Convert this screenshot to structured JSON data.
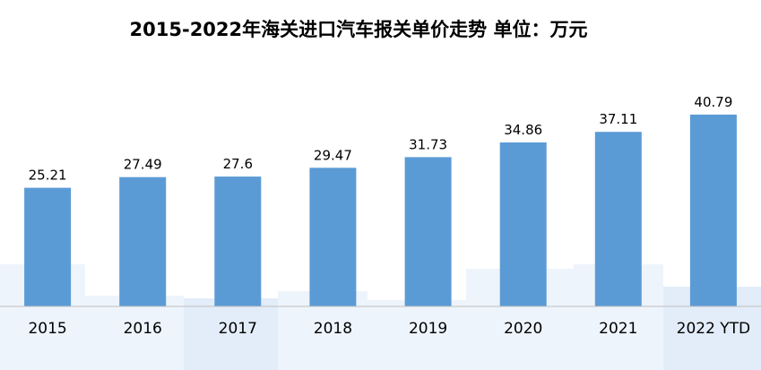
{
  "chart_data": {
    "type": "bar",
    "title": "2015-2022年海关进口汽车报关单价走势  单位：万元",
    "categories": [
      "2015",
      "2016",
      "2017",
      "2018",
      "2019",
      "2020",
      "2021",
      "2022 YTD"
    ],
    "values": [
      25.21,
      27.49,
      27.6,
      29.47,
      31.73,
      34.86,
      37.11,
      40.79
    ],
    "value_labels": [
      "25.21",
      "27.49",
      "27.6",
      "29.47",
      "31.73",
      "34.86",
      "37.11",
      "40.79"
    ],
    "ylim": [
      0,
      45
    ],
    "grid": false,
    "legend": "none",
    "bar_color": "#5b9bd5",
    "axis_color": "#bfbfbf"
  }
}
